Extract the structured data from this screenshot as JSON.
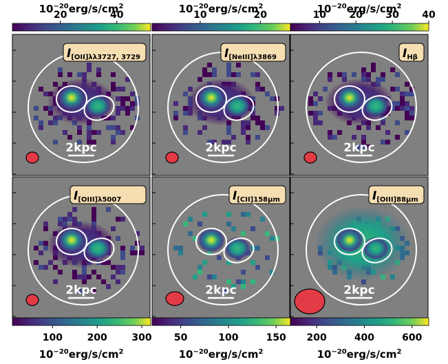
{
  "chart_data": [
    {
      "type": "heatmap",
      "panel": "[OII]",
      "label_main": "I",
      "label_sub": "[OII]λλ3727, 3729",
      "colorbar": {
        "position": "top",
        "ticks": [
          20,
          40
        ],
        "range": [
          3,
          52
        ],
        "unit": "10",
        "unit_exp": "−20",
        "unit_tail": "erg/s/cm",
        "unit_sq": "2"
      },
      "scale_bar": "2kpc"
    },
    {
      "type": "heatmap",
      "panel": "[NeIII]",
      "label_main": "I",
      "label_sub": "[NeIII]λ3869",
      "colorbar": {
        "position": "top",
        "ticks": [
          10,
          20
        ],
        "range": [
          2,
          25
        ],
        "unit": "10",
        "unit_exp": "−20",
        "unit_tail": "erg/s/cm",
        "unit_sq": "2"
      },
      "scale_bar": "2kpc"
    },
    {
      "type": "heatmap",
      "panel": "Hβ",
      "label_main": "I",
      "label_sub": "Hβ",
      "colorbar": {
        "position": "top",
        "ticks": [
          10,
          20,
          30,
          40
        ],
        "range": [
          2,
          40
        ],
        "unit": "10",
        "unit_exp": "−20",
        "unit_tail": "erg/s/cm",
        "unit_sq": "2"
      },
      "scale_bar": "2kpc"
    },
    {
      "type": "heatmap",
      "panel": "[OIII]5007",
      "label_main": "I",
      "label_sub": "[OIII]λ5007",
      "colorbar": {
        "position": "bottom",
        "ticks": [
          100,
          200,
          300
        ],
        "range": [
          10,
          320
        ],
        "unit": "10",
        "unit_exp": "−20",
        "unit_tail": "erg/s/cm",
        "unit_sq": "2"
      },
      "scale_bar": "2kpc"
    },
    {
      "type": "heatmap",
      "panel": "[CII]",
      "label_main": "I",
      "label_sub": "[CII]158μm",
      "colorbar": {
        "position": "bottom",
        "ticks": [
          50,
          100,
          150
        ],
        "range": [
          20,
          165
        ],
        "unit": "10",
        "unit_exp": "−20",
        "unit_tail": "erg/s/cm",
        "unit_sq": "2"
      },
      "scale_bar": "2kpc"
    },
    {
      "type": "heatmap",
      "panel": "[OIII]88",
      "label_main": "I",
      "label_sub": "[OIII]88μm",
      "colorbar": {
        "position": "bottom",
        "ticks": [
          200,
          400,
          600
        ],
        "range": [
          90,
          670
        ],
        "unit": "10",
        "unit_exp": "−20",
        "unit_tail": "erg/s/cm",
        "unit_sq": "2"
      },
      "scale_bar": "2kpc"
    }
  ],
  "colors": {
    "background": "#808080",
    "beam": "#e23b46",
    "overlay": "#ffffff",
    "label_box": "#f6deb3"
  }
}
